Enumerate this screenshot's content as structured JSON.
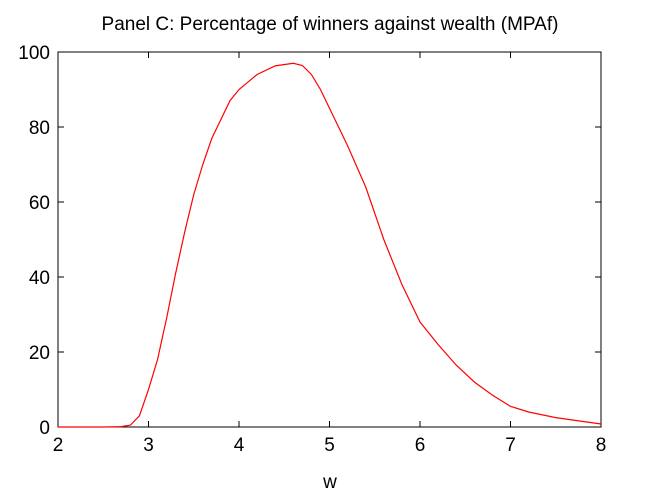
{
  "chart_data": {
    "type": "line",
    "title": "Panel C: Percentage of winners against wealth (MPAf)",
    "x_label": "w",
    "x": [
      2,
      2.5,
      2.7,
      2.8,
      2.9,
      3.0,
      3.1,
      3.2,
      3.3,
      3.4,
      3.5,
      3.6,
      3.7,
      3.8,
      3.9,
      4.0,
      4.2,
      4.4,
      4.6,
      4.7,
      4.8,
      4.9,
      5.0,
      5.2,
      5.4,
      5.6,
      5.8,
      6.0,
      6.2,
      6.4,
      6.6,
      6.8,
      7.0,
      7.2,
      7.5,
      8.0
    ],
    "series": [
      {
        "color": "#ff0000",
        "values": [
          0,
          0,
          0.1,
          0.5,
          3,
          10,
          18,
          29,
          41,
          52,
          62,
          70,
          77,
          82,
          87,
          90,
          94,
          96.3,
          97,
          96.4,
          94,
          90,
          85,
          75,
          64,
          50,
          38,
          28,
          22,
          16.5,
          12,
          8.5,
          5.5,
          4,
          2.5,
          0.8
        ]
      }
    ],
    "xlim": [
      2,
      8
    ],
    "xticks": [
      2,
      3,
      4,
      5,
      6,
      7,
      8
    ],
    "ylim": [
      0,
      100
    ],
    "yticks": [
      0,
      20,
      40,
      60,
      80,
      100
    ]
  }
}
